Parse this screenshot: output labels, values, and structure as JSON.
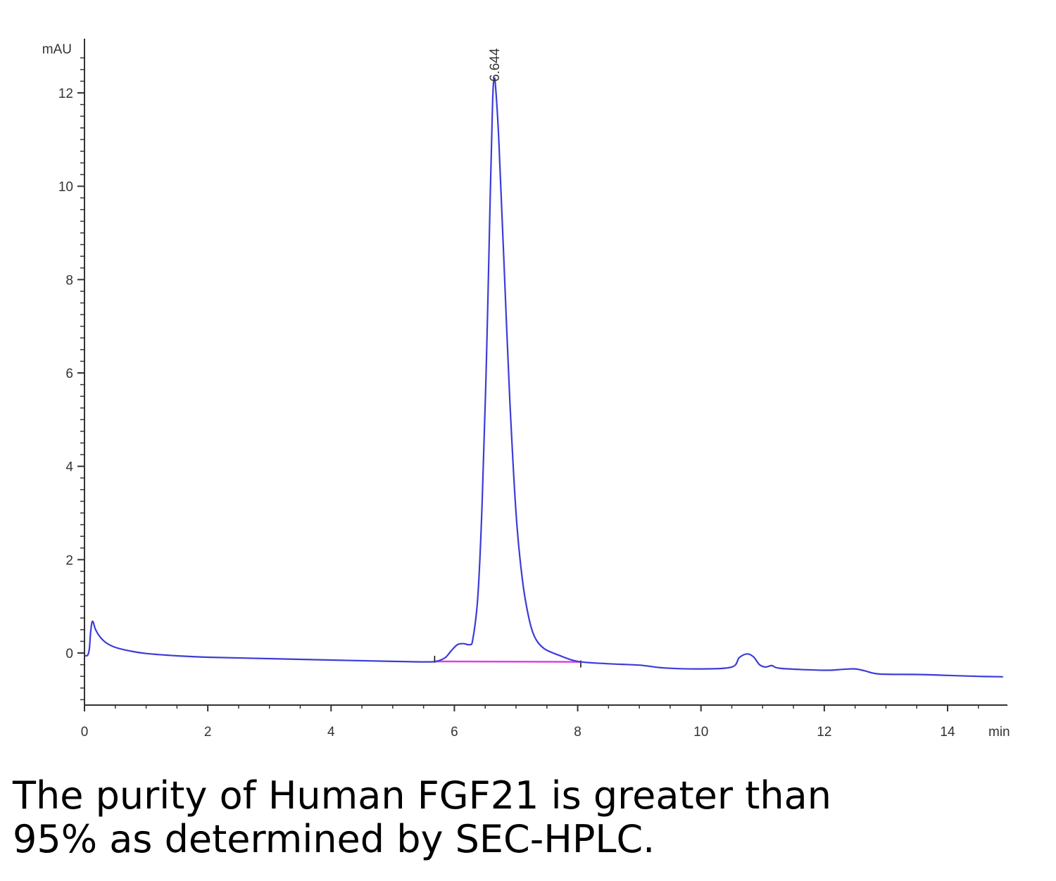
{
  "chart_data": {
    "type": "line",
    "ylabel": "mAU",
    "xunit": "min",
    "xlim": [
      0,
      14.9
    ],
    "ylim": [
      -1.1,
      13
    ],
    "x_ticks": [
      0,
      2,
      4,
      6,
      8,
      10,
      12,
      14
    ],
    "y_ticks": [
      0,
      2,
      4,
      6,
      8,
      10,
      12
    ],
    "peak_label": "6.644",
    "colors": {
      "trace": "#3c3cd8",
      "baseline": "#e040e0",
      "axis": "#333333"
    },
    "series": [
      {
        "points": [
          [
            0,
            -0.05
          ],
          [
            0.05,
            -0.05
          ],
          [
            0.08,
            0.1
          ],
          [
            0.1,
            0.45
          ],
          [
            0.13,
            0.68
          ],
          [
            0.18,
            0.5
          ],
          [
            0.25,
            0.35
          ],
          [
            0.35,
            0.22
          ],
          [
            0.5,
            0.12
          ],
          [
            0.75,
            0.04
          ],
          [
            1,
            -0.01
          ],
          [
            1.5,
            -0.06
          ],
          [
            2,
            -0.09
          ],
          [
            3,
            -0.12
          ],
          [
            4,
            -0.15
          ],
          [
            5,
            -0.18
          ],
          [
            5.5,
            -0.19
          ],
          [
            5.7,
            -0.18
          ],
          [
            5.85,
            -0.1
          ],
          [
            5.95,
            0.05
          ],
          [
            6.05,
            0.18
          ],
          [
            6.15,
            0.2
          ],
          [
            6.25,
            0.18
          ],
          [
            6.3,
            0.3
          ],
          [
            6.38,
            1.2
          ],
          [
            6.45,
            3.2
          ],
          [
            6.52,
            6.3
          ],
          [
            6.58,
            9.7
          ],
          [
            6.62,
            11.8
          ],
          [
            6.644,
            12.3
          ],
          [
            6.67,
            12.1
          ],
          [
            6.72,
            11
          ],
          [
            6.8,
            8.5
          ],
          [
            6.9,
            5.4
          ],
          [
            7,
            3
          ],
          [
            7.1,
            1.6
          ],
          [
            7.2,
            0.8
          ],
          [
            7.3,
            0.35
          ],
          [
            7.45,
            0.1
          ],
          [
            7.7,
            -0.05
          ],
          [
            8,
            -0.18
          ],
          [
            8.5,
            -0.23
          ],
          [
            9,
            -0.26
          ],
          [
            9.4,
            -0.32
          ],
          [
            10,
            -0.34
          ],
          [
            10.5,
            -0.3
          ],
          [
            10.62,
            -0.1
          ],
          [
            10.75,
            -0.02
          ],
          [
            10.85,
            -0.08
          ],
          [
            10.95,
            -0.25
          ],
          [
            11.05,
            -0.3
          ],
          [
            11.15,
            -0.27
          ],
          [
            11.3,
            -0.33
          ],
          [
            12,
            -0.37
          ],
          [
            12.3,
            -0.35
          ],
          [
            12.5,
            -0.34
          ],
          [
            12.65,
            -0.38
          ],
          [
            12.9,
            -0.45
          ],
          [
            13.5,
            -0.46
          ],
          [
            14,
            -0.48
          ],
          [
            14.5,
            -0.5
          ],
          [
            14.9,
            -0.51
          ]
        ]
      }
    ],
    "integration_baseline": {
      "start": [
        5.68,
        -0.18
      ],
      "end": [
        8.05,
        -0.19
      ]
    }
  },
  "caption": {
    "line1": "The purity of Human FGF21 is greater than",
    "line2": "95% as determined by SEC-HPLC."
  }
}
